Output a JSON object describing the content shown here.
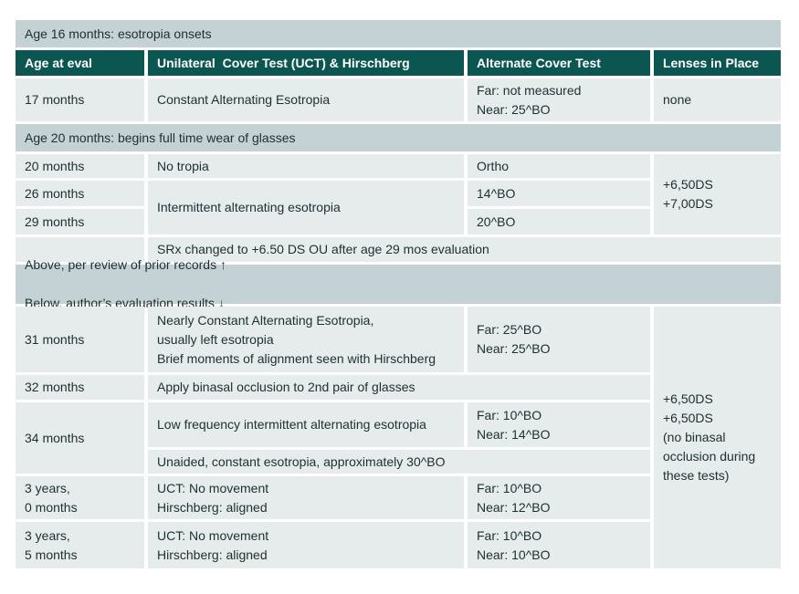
{
  "colors": {
    "header_bg": "#0b5651",
    "section_band_bg": "#c5d2d5",
    "row_bg": "#e6ebec",
    "text": "#1e2f31",
    "header_text": "#ffffff"
  },
  "table": {
    "section1_title": "Age 16 months: esotropia onsets",
    "columns": [
      "Age at eval",
      "Unilateral  Cover Test (UCT) & Hirschberg",
      "Alternate Cover Test",
      "Lenses in Place"
    ],
    "r17": {
      "age": "17 months",
      "uct": "Constant Alternating Esotropia",
      "act": "Far: not measured\nNear: 25^BO",
      "lenses": "none"
    },
    "section2_title": "Age 20 months: begins full time wear of glasses",
    "r20": {
      "age": "20 months",
      "uct": "No tropia",
      "act": "Ortho"
    },
    "r26": {
      "age": "26 months",
      "act": "14^BO"
    },
    "r29": {
      "age": "29 months",
      "act": "20^BO"
    },
    "uct_26_29": "Intermittent alternating esotropia",
    "lenses_20_29": "+6,50DS\n+7,00DS",
    "srx_note": "SRx changed to +6.50 DS OU after age 29 mos evaluation",
    "section3_line1": "Above, per review of prior records ↑",
    "section3_line2": "Below, author’s evaluation results ↓",
    "r31": {
      "age": "31 months",
      "uct": "Nearly Constant Alternating Esotropia,\nusually left esotropia\nBrief moments of alignment seen with Hirschberg",
      "act": "Far: 25^BO\nNear: 25^BO"
    },
    "r32": {
      "age": "32 months",
      "note": "Apply binasal occlusion to 2nd pair of glasses"
    },
    "r34": {
      "age": "34 months",
      "uct": "Low frequency intermittent alternating esotropia",
      "act": "Far: 10^BO\nNear: 14^BO",
      "unaided_note": "Unaided, constant esotropia, approximately 30^BO"
    },
    "r36": {
      "age": "3 years,\n0 months",
      "uct": "UCT: No movement\nHirschberg: aligned",
      "act": "Far: 10^BO\nNear: 12^BO"
    },
    "r41": {
      "age": "3 years,\n5 months",
      "uct": "UCT: No movement\nHirschberg: aligned",
      "act": "Far: 10^BO\nNear: 10^BO"
    },
    "lenses_31_41": "+6,50DS\n+6,50DS\n(no binasal occlusion during these tests)"
  }
}
